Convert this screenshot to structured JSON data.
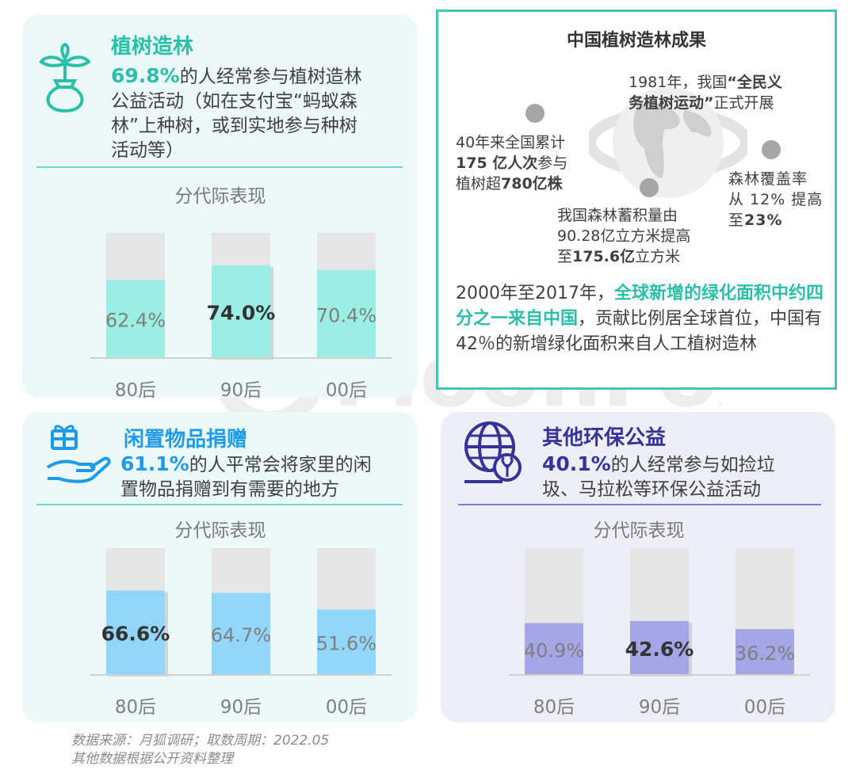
{
  "colors": {
    "teal_accent": "#2bbfaa",
    "blue_accent": "#1e9be8",
    "indigo_accent": "#343399",
    "bar_bg": "#e6e6e6",
    "bar_teal": "#9aeee4",
    "bar_blue": "#93d6fb",
    "bar_purple": "#a4a6e6"
  },
  "tree_panel": {
    "icon": "sprout-bag-icon",
    "title": "植树造林",
    "percent": "69.8%",
    "text_a": "的人经常参与植树造林",
    "text_b": "公益活动（如在支付宝“蚂蚁森",
    "text_c": "林”上种树，或到实地参与种树",
    "text_d": "活动等）",
    "subtitle": "分代际表现"
  },
  "donation_panel": {
    "icon": "gift-hand-icon",
    "title": "闲置物品捐赠",
    "percent": "61.1%",
    "text_a": "的人平常会将家里的闲",
    "text_b": "置物品捐赠到有需要的地方",
    "subtitle": "分代际表现"
  },
  "env_panel": {
    "icon": "globe-plant-icon",
    "title": "其他环保公益",
    "percent": "40.1%",
    "text_a": "的人经常参与如捡垃",
    "text_b": "圾、马拉松等环保公益活动",
    "subtitle": "分代际表现"
  },
  "china_panel": {
    "title": "中国植树造林成果",
    "fact1_a": "1981年，我国",
    "fact1_b": "“全民义",
    "fact1_c": "务植树运动”",
    "fact1_d": "正式开展",
    "fact2_a": "40年来全国累计",
    "fact2_b": "175 亿人次",
    "fact2_c": "参与",
    "fact2_d": "植树超",
    "fact2_e": "780亿株",
    "fact3_a": "森林覆盖率",
    "fact3_b": "从 12% 提高",
    "fact3_c": "至",
    "fact3_d": "23%",
    "fact4_a": "我国森林蓄积量由",
    "fact4_b": "90.28亿立方米提高",
    "fact4_c": "至",
    "fact4_d": "175.6亿",
    "fact4_e": "立方米",
    "summary_a": "2000年至2017年，",
    "summary_b": "全球新增的绿化面积中约四分之一来自中国",
    "summary_c": "，贡献比例居全球首位，中国有42％的新增绿化面积来自人工植树造林"
  },
  "source": {
    "line1": "数据来源：月狐调研；取数周期：2022.05",
    "line2": "其他数据根据公开资料整理"
  },
  "watermark": "MoonFox",
  "chart_data": [
    {
      "type": "bar",
      "categories": [
        "80后",
        "90后",
        "00后"
      ],
      "values": [
        62.4,
        74.0,
        70.4
      ],
      "labels": [
        "62.4%",
        "74.0%",
        "70.4%"
      ],
      "highlight_index": 1,
      "ylim": [
        0,
        100
      ]
    },
    {
      "type": "bar",
      "categories": [
        "80后",
        "90后",
        "00后"
      ],
      "values": [
        66.6,
        64.7,
        51.6
      ],
      "labels": [
        "66.6%",
        "64.7%",
        "51.6%"
      ],
      "highlight_index": 0,
      "ylim": [
        0,
        100
      ]
    },
    {
      "type": "bar",
      "categories": [
        "80后",
        "90后",
        "00后"
      ],
      "values": [
        40.9,
        42.6,
        36.2
      ],
      "labels": [
        "40.9%",
        "42.6%",
        "36.2%"
      ],
      "highlight_index": 1,
      "ylim": [
        0,
        100
      ]
    }
  ]
}
